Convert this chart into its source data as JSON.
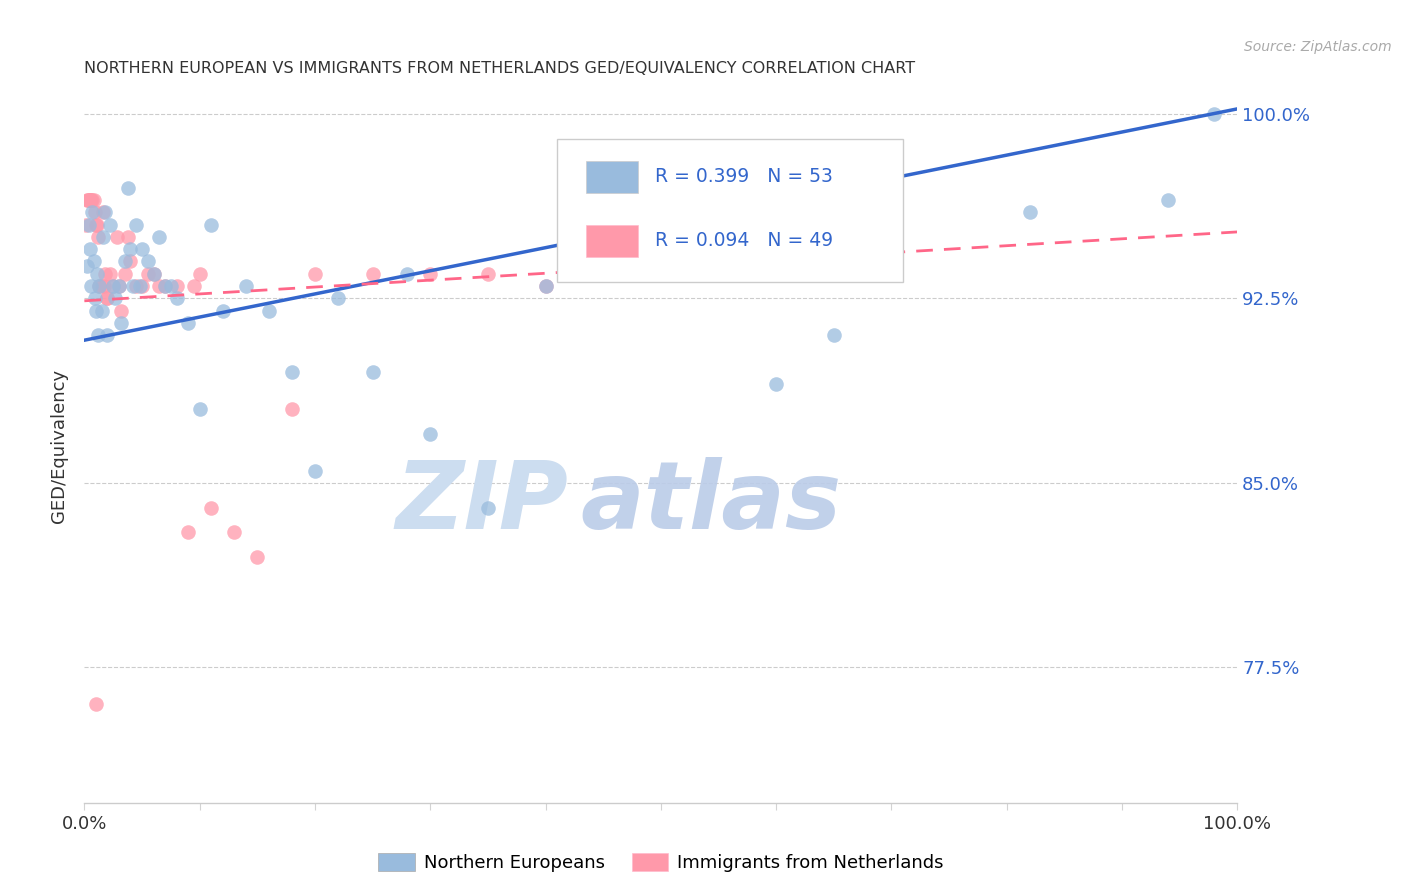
{
  "title": "NORTHERN EUROPEAN VS IMMIGRANTS FROM NETHERLANDS GED/EQUIVALENCY CORRELATION CHART",
  "source": "Source: ZipAtlas.com",
  "ylabel": "GED/Equivalency",
  "legend_blue_r": "R = 0.399",
  "legend_blue_n": "N = 53",
  "legend_pink_r": "R = 0.094",
  "legend_pink_n": "N = 49",
  "legend_blue_label": "Northern Europeans",
  "legend_pink_label": "Immigrants from Netherlands",
  "xlim": [
    0.0,
    1.0
  ],
  "ylim": [
    0.72,
    1.01
  ],
  "yticks": [
    0.775,
    0.85,
    0.925,
    1.0
  ],
  "ytick_labels": [
    "77.5%",
    "85.0%",
    "92.5%",
    "100.0%"
  ],
  "xticks": [
    0.0,
    0.1,
    0.2,
    0.3,
    0.4,
    0.5,
    0.6,
    0.7,
    0.8,
    0.9,
    1.0
  ],
  "xtick_labels": [
    "0.0%",
    "",
    "",
    "",
    "",
    "",
    "",
    "",
    "",
    "",
    "100.0%"
  ],
  "blue_color": "#99BBDD",
  "pink_color": "#FF99AA",
  "blue_line_color": "#3366CC",
  "pink_line_color": "#FF6688",
  "watermark_zip": "ZIP",
  "watermark_atlas": "atlas",
  "blue_x": [
    0.002,
    0.004,
    0.005,
    0.006,
    0.007,
    0.008,
    0.009,
    0.01,
    0.011,
    0.012,
    0.013,
    0.015,
    0.016,
    0.018,
    0.02,
    0.022,
    0.025,
    0.027,
    0.03,
    0.032,
    0.035,
    0.038,
    0.04,
    0.042,
    0.045,
    0.048,
    0.05,
    0.055,
    0.06,
    0.065,
    0.07,
    0.075,
    0.08,
    0.09,
    0.1,
    0.11,
    0.12,
    0.14,
    0.16,
    0.18,
    0.2,
    0.22,
    0.25,
    0.28,
    0.3,
    0.35,
    0.4,
    0.5,
    0.6,
    0.65,
    0.82,
    0.94,
    0.98
  ],
  "blue_y": [
    0.938,
    0.955,
    0.945,
    0.93,
    0.96,
    0.94,
    0.925,
    0.92,
    0.935,
    0.91,
    0.93,
    0.92,
    0.95,
    0.96,
    0.91,
    0.955,
    0.93,
    0.925,
    0.93,
    0.915,
    0.94,
    0.97,
    0.945,
    0.93,
    0.955,
    0.93,
    0.945,
    0.94,
    0.935,
    0.95,
    0.93,
    0.93,
    0.925,
    0.915,
    0.88,
    0.955,
    0.92,
    0.93,
    0.92,
    0.895,
    0.855,
    0.925,
    0.895,
    0.935,
    0.87,
    0.84,
    0.93,
    0.965,
    0.89,
    0.91,
    0.96,
    0.965,
    1.0
  ],
  "pink_x": [
    0.001,
    0.002,
    0.003,
    0.004,
    0.005,
    0.005,
    0.006,
    0.007,
    0.008,
    0.009,
    0.01,
    0.011,
    0.012,
    0.013,
    0.015,
    0.016,
    0.017,
    0.018,
    0.02,
    0.022,
    0.025,
    0.028,
    0.03,
    0.032,
    0.035,
    0.038,
    0.04,
    0.045,
    0.05,
    0.055,
    0.06,
    0.065,
    0.07,
    0.08,
    0.09,
    0.095,
    0.1,
    0.11,
    0.13,
    0.15,
    0.18,
    0.2,
    0.25,
    0.3,
    0.35,
    0.4,
    0.5,
    0.01,
    0.02
  ],
  "pink_y": [
    0.955,
    0.965,
    0.965,
    0.965,
    0.965,
    0.965,
    0.965,
    0.965,
    0.965,
    0.96,
    0.955,
    0.955,
    0.95,
    0.93,
    0.93,
    0.96,
    0.93,
    0.935,
    0.925,
    0.935,
    0.93,
    0.95,
    0.93,
    0.92,
    0.935,
    0.95,
    0.94,
    0.93,
    0.93,
    0.935,
    0.935,
    0.93,
    0.93,
    0.93,
    0.83,
    0.93,
    0.935,
    0.84,
    0.83,
    0.82,
    0.88,
    0.935,
    0.935,
    0.935,
    0.935,
    0.93,
    0.935,
    0.76,
    0.925
  ],
  "blue_line_x": [
    0.0,
    1.0
  ],
  "blue_line_y": [
    0.908,
    1.002
  ],
  "pink_line_x": [
    0.0,
    1.0
  ],
  "pink_line_y": [
    0.924,
    0.952
  ]
}
